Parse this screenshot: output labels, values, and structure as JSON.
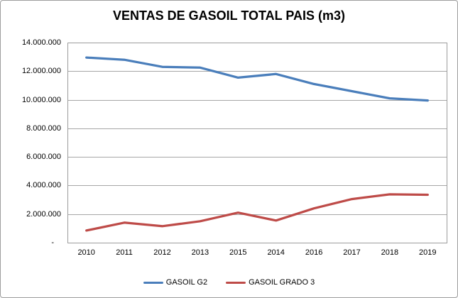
{
  "window": {
    "background_color": "#ffffff",
    "border_color": "#9d9d9d"
  },
  "chart_data": {
    "type": "line",
    "title": "VENTAS DE GASOIL TOTAL PAIS (m3)",
    "categories": [
      "2010",
      "2011",
      "2012",
      "2013",
      "2015",
      "2014",
      "2016",
      "2017",
      "2018",
      "2019"
    ],
    "series": [
      {
        "name": "GASOIL G2",
        "color": "#4a7ebb",
        "values": [
          12950000,
          12800000,
          12300000,
          12250000,
          11550000,
          11800000,
          11100000,
          10600000,
          10100000,
          9950000
        ]
      },
      {
        "name": "GASOIL GRADO 3",
        "color": "#be4b48",
        "values": [
          850000,
          1400000,
          1150000,
          1500000,
          2100000,
          1550000,
          2400000,
          3050000,
          3380000,
          3350000
        ]
      }
    ],
    "xlabel": "",
    "ylabel": "",
    "ylim": [
      0,
      14000000
    ],
    "y_tick_interval": 2000000,
    "y_tick_labels_top_to_bottom": [
      "14.000.000",
      "12.000.000",
      "10.000.000",
      "8.000.000",
      "6.000.000",
      "4.000.000",
      "2.000.000",
      "-"
    ],
    "grid": true,
    "gridline_color": "#a6a6a6",
    "plot_border_color": "#9b9b9b",
    "legend_position": "bottom"
  }
}
